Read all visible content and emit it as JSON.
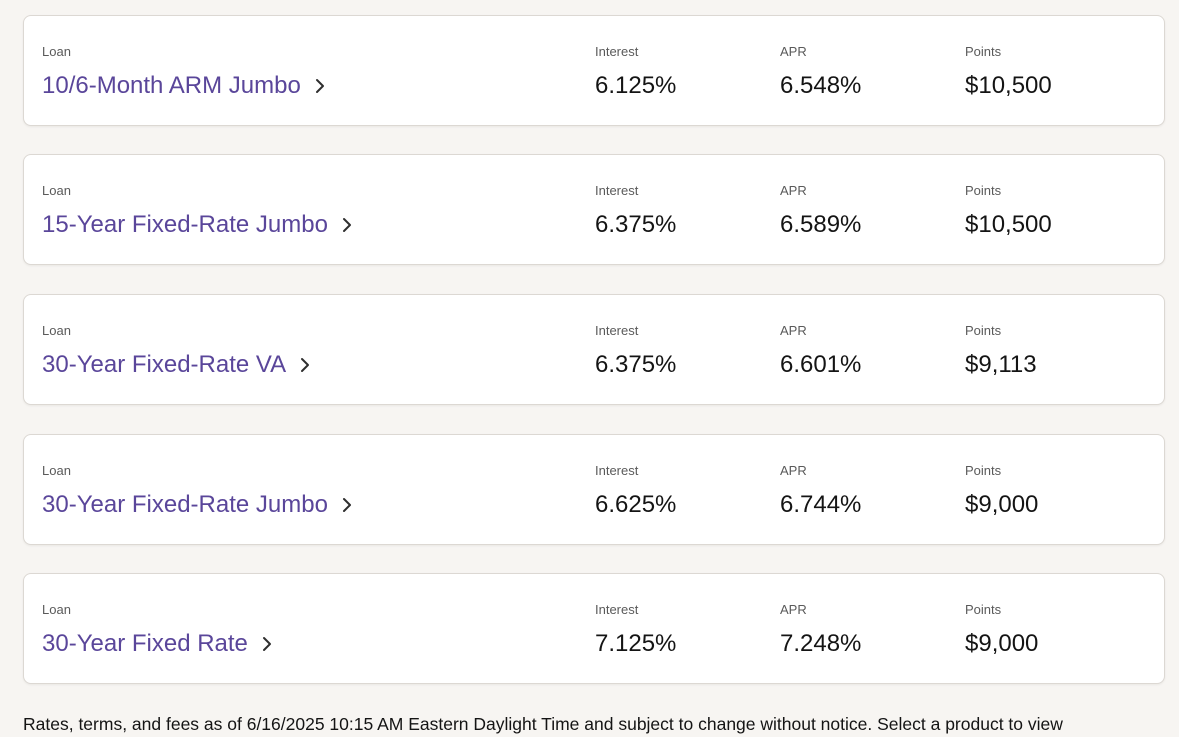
{
  "labels": {
    "loan": "Loan",
    "interest": "Interest",
    "apr": "APR",
    "points": "Points"
  },
  "rates": [
    {
      "loan": "10/6-Month ARM Jumbo",
      "interest": "6.125%",
      "apr": "6.548%",
      "points": "$10,500"
    },
    {
      "loan": "15-Year Fixed-Rate Jumbo",
      "interest": "6.375%",
      "apr": "6.589%",
      "points": "$10,500"
    },
    {
      "loan": "30-Year Fixed-Rate VA",
      "interest": "6.375%",
      "apr": "6.601%",
      "points": "$9,113"
    },
    {
      "loan": "30-Year Fixed-Rate Jumbo",
      "interest": "6.625%",
      "apr": "6.744%",
      "points": "$9,000"
    },
    {
      "loan": "30-Year Fixed Rate",
      "interest": "7.125%",
      "apr": "7.248%",
      "points": "$9,000"
    }
  ],
  "disclaimer": "Rates, terms, and fees as of 6/16/2025 10:15 AM Eastern Daylight Time and subject to change without notice. Select a product to view",
  "colors": {
    "link": "#5a469a",
    "background": "#f7f5f2"
  },
  "icons": {
    "loan_link": "chevron-right-icon"
  }
}
